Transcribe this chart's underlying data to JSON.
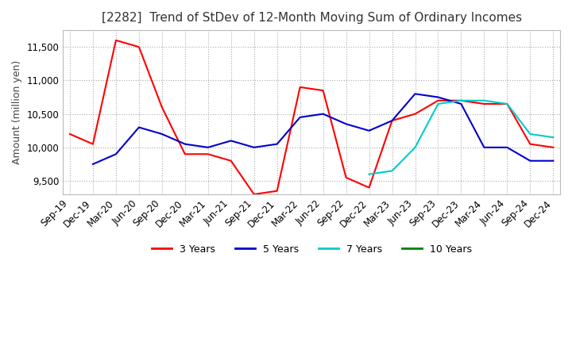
{
  "title": "[2282]  Trend of StDev of 12-Month Moving Sum of Ordinary Incomes",
  "ylabel": "Amount (million yen)",
  "title_fontsize": 11,
  "label_fontsize": 9,
  "tick_fontsize": 8.5,
  "background_color": "#ffffff",
  "grid_color": "#aaaaaa",
  "ylim": [
    9300,
    11750
  ],
  "yticks": [
    9500,
    10000,
    10500,
    11000,
    11500
  ],
  "x_labels": [
    "Sep-19",
    "Dec-19",
    "Mar-20",
    "Jun-20",
    "Sep-20",
    "Dec-20",
    "Mar-21",
    "Jun-21",
    "Sep-21",
    "Dec-21",
    "Mar-22",
    "Jun-22",
    "Sep-22",
    "Dec-22",
    "Mar-23",
    "Jun-23",
    "Sep-23",
    "Dec-23",
    "Mar-24",
    "Jun-24",
    "Sep-24",
    "Dec-24"
  ],
  "series": {
    "3 Years": {
      "color": "#ff0000",
      "data": [
        10200,
        10050,
        11600,
        11500,
        10600,
        9900,
        9900,
        9800,
        9300,
        9350,
        10900,
        10850,
        9550,
        9400,
        10400,
        10500,
        10700,
        10700,
        10650,
        10650,
        10050,
        10000
      ]
    },
    "5 Years": {
      "color": "#0000cc",
      "data": [
        null,
        9750,
        9900,
        10300,
        10200,
        10050,
        10000,
        10100,
        10000,
        10050,
        10450,
        10500,
        10350,
        10250,
        10400,
        10800,
        10750,
        10650,
        10000,
        10000,
        9800,
        9800
      ]
    },
    "7 Years": {
      "color": "#00cccc",
      "data": [
        null,
        null,
        null,
        null,
        null,
        null,
        null,
        null,
        null,
        null,
        null,
        null,
        null,
        9600,
        9650,
        10000,
        10650,
        10700,
        10700,
        10650,
        10200,
        10150
      ]
    },
    "10 Years": {
      "color": "#008000",
      "data": [
        null,
        null,
        null,
        null,
        null,
        null,
        null,
        null,
        null,
        null,
        null,
        null,
        null,
        null,
        null,
        null,
        null,
        null,
        null,
        null,
        null,
        null
      ]
    }
  }
}
